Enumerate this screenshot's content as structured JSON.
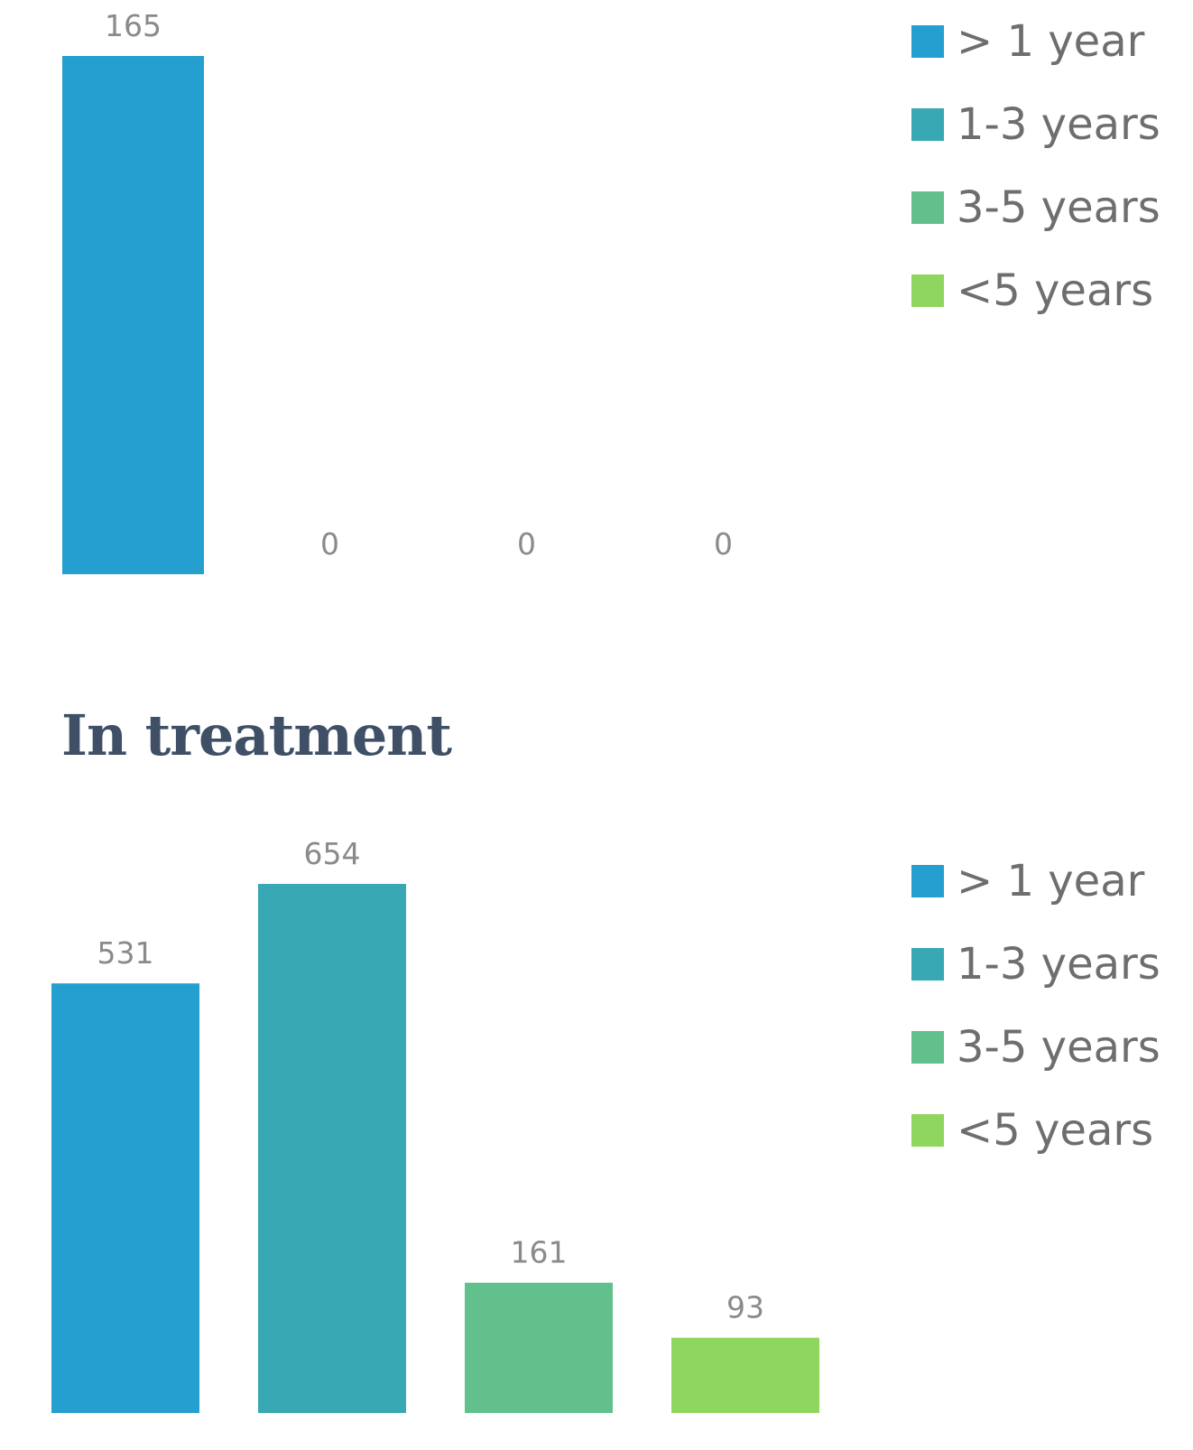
{
  "legend_colors": [
    "#259fcf",
    "#38a8b5",
    "#62c08c",
    "#8fd65e"
  ],
  "chart_data": [
    {
      "type": "bar",
      "title": "",
      "categories": [
        "> 1 year",
        "1-3 years",
        "3-5 years",
        "<5 years"
      ],
      "values": [
        165,
        0,
        0,
        0
      ],
      "legend": {
        "position": "right",
        "entries": [
          "> 1 year",
          "1-3 years",
          "3-5 years",
          "<5 years"
        ]
      },
      "grid": false
    },
    {
      "type": "bar",
      "title": "In treatment",
      "categories": [
        "> 1 year",
        "1-3 years",
        "3-5 years",
        "<5 years"
      ],
      "values": [
        531,
        654,
        161,
        93
      ],
      "legend": {
        "position": "right",
        "entries": [
          "> 1 year",
          "1-3 years",
          "3-5 years",
          "<5 years"
        ]
      },
      "grid": false
    }
  ]
}
